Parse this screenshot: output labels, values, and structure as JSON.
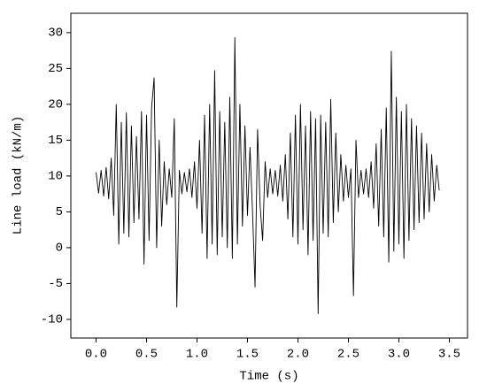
{
  "chart_data": {
    "type": "line",
    "x_label": "Time (s)",
    "y_label": "Line load (kN/m)",
    "xlim": [
      -0.25,
      3.68
    ],
    "ylim": [
      -12.6,
      32.7
    ],
    "xticks": [
      {
        "value": 0,
        "label": "0.0"
      },
      0.5,
      {
        "value": 1,
        "label": "1.0"
      },
      1.5,
      {
        "value": 2,
        "label": "2.0"
      },
      2.5,
      {
        "value": 3,
        "label": "3.0"
      },
      3.5
    ],
    "yticks": [
      -10,
      -5,
      0,
      5,
      10,
      15,
      20,
      25,
      30
    ],
    "grid": false,
    "x": [
      0,
      0.025,
      0.05,
      0.075,
      0.1,
      0.125,
      0.15,
      0.175,
      0.2,
      0.225,
      0.25,
      0.275,
      0.3,
      0.325,
      0.35,
      0.375,
      0.4,
      0.425,
      0.45,
      0.475,
      0.5,
      0.525,
      0.55,
      0.575,
      0.6,
      0.625,
      0.65,
      0.675,
      0.7,
      0.725,
      0.75,
      0.775,
      0.8,
      0.825,
      0.85,
      0.875,
      0.9,
      0.925,
      0.95,
      0.975,
      1.0,
      1.025,
      1.05,
      1.075,
      1.1,
      1.125,
      1.15,
      1.175,
      1.2,
      1.225,
      1.25,
      1.275,
      1.3,
      1.325,
      1.35,
      1.375,
      1.4,
      1.425,
      1.45,
      1.475,
      1.5,
      1.525,
      1.55,
      1.575,
      1.6,
      1.625,
      1.65,
      1.675,
      1.7,
      1.725,
      1.75,
      1.775,
      1.8,
      1.825,
      1.85,
      1.875,
      1.9,
      1.925,
      1.95,
      1.975,
      2.0,
      2.025,
      2.05,
      2.075,
      2.1,
      2.125,
      2.15,
      2.175,
      2.2,
      2.225,
      2.25,
      2.275,
      2.3,
      2.325,
      2.35,
      2.375,
      2.4,
      2.425,
      2.45,
      2.475,
      2.5,
      2.525,
      2.55,
      2.575,
      2.6,
      2.625,
      2.65,
      2.675,
      2.7,
      2.725,
      2.75,
      2.775,
      2.8,
      2.825,
      2.85,
      2.875,
      2.9,
      2.925,
      2.95,
      2.975,
      3.0,
      3.025,
      3.05,
      3.075,
      3.1,
      3.125,
      3.15,
      3.175,
      3.2,
      3.225,
      3.25,
      3.275,
      3.3,
      3.325,
      3.35,
      3.375,
      3.4
    ],
    "series": [
      {
        "color": "#000000",
        "values": [
          10.5,
          7.6,
          10.8,
          7.2,
          11.2,
          6.8,
          12.5,
          4.5,
          20.0,
          0.5,
          17.5,
          2.0,
          18.8,
          1.5,
          17.0,
          3.5,
          15.5,
          4.0,
          19.0,
          -2.3,
          18.5,
          1.0,
          19.5,
          23.7,
          0.0,
          15.0,
          3.0,
          12.0,
          6.0,
          11.0,
          7.0,
          18.0,
          -8.3,
          10.8,
          7.5,
          10.5,
          7.8,
          11.0,
          7.0,
          12.0,
          5.5,
          15.0,
          2.0,
          18.5,
          -1.5,
          20.0,
          0.5,
          24.7,
          -1.0,
          19.0,
          1.5,
          17.5,
          0.0,
          21.0,
          -1.5,
          29.3,
          0.5,
          20.0,
          3.0,
          17.0,
          4.5,
          14.0,
          5.0,
          -5.5,
          16.5,
          6.0,
          1.0,
          12.0,
          7.0,
          11.0,
          7.5,
          10.8,
          7.2,
          11.5,
          6.5,
          13.0,
          4.0,
          16.0,
          1.5,
          18.5,
          0.5,
          20.0,
          2.5,
          17.0,
          -1.0,
          19.0,
          1.0,
          18.0,
          -9.2,
          18.5,
          2.0,
          17.5,
          1.5,
          20.7,
          3.5,
          16.0,
          5.0,
          13.0,
          6.5,
          11.5,
          7.0,
          11.0,
          -6.7,
          15.0,
          7.0,
          10.8,
          7.5,
          11.0,
          7.0,
          12.0,
          5.5,
          14.5,
          3.0,
          16.5,
          1.5,
          19.5,
          -2.0,
          27.4,
          -0.5,
          21.0,
          0.5,
          19.0,
          -1.5,
          20.0,
          1.0,
          18.0,
          2.5,
          17.0,
          3.5,
          16.0,
          4.0,
          14.5,
          5.0,
          13.0,
          6.5,
          11.5,
          8.0
        ]
      }
    ]
  }
}
